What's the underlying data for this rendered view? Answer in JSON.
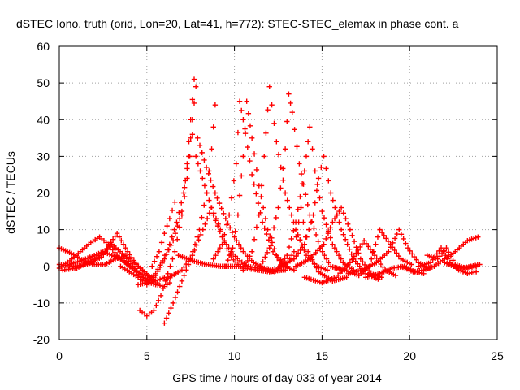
{
  "chart_data": {
    "type": "scatter",
    "title": "dSTEC Iono. truth (orid, Lon=20, Lat=41, h=772): STEC-STEC_elemax in phase cont. a",
    "xlabel": "GPS time / hours of day 033 of year 2014",
    "ylabel": "dSTEC  / TECUs",
    "xlim": [
      0,
      25
    ],
    "ylim": [
      -20,
      60
    ],
    "xticks": [
      0,
      5,
      10,
      15,
      20,
      25
    ],
    "yticks": [
      -20,
      -10,
      0,
      10,
      20,
      30,
      40,
      50,
      60
    ],
    "grid": true,
    "marker": "+",
    "color": "#ff0000",
    "series": [
      {
        "x": [
          0.0,
          0.6,
          1.2,
          1.8,
          2.3,
          2.8,
          3.3,
          3.9,
          4.4,
          4.9,
          5.4
        ],
        "y": [
          -0.5,
          1.5,
          4.0,
          6.5,
          8.0,
          6.0,
          3.0,
          0.5,
          -1.5,
          -2.5,
          -3.0
        ]
      },
      {
        "x": [
          0.0,
          0.7,
          1.4,
          2.0,
          2.6,
          3.2,
          3.8,
          4.4,
          5.0
        ],
        "y": [
          5.0,
          3.5,
          1.5,
          0.5,
          0.5,
          2.0,
          3.0,
          0.5,
          -2.0
        ]
      },
      {
        "x": [
          0.0,
          0.8,
          1.6,
          2.4,
          3.0,
          3.6,
          4.2,
          4.8,
          5.3
        ],
        "y": [
          0.5,
          0.0,
          0.5,
          2.5,
          6.0,
          3.5,
          0.0,
          -3.0,
          -4.0
        ]
      },
      {
        "x": [
          0.2,
          1.0,
          1.8,
          2.6,
          3.3,
          3.9,
          4.5,
          5.1,
          5.6
        ],
        "y": [
          -1.0,
          -0.5,
          1.5,
          4.0,
          9.0,
          4.0,
          0.0,
          -2.5,
          -4.5
        ]
      },
      {
        "x": [
          0.6,
          1.5,
          2.5,
          3.5,
          4.3,
          4.9,
          5.5,
          6.0,
          6.3
        ],
        "y": [
          0.5,
          2.0,
          4.0,
          2.0,
          -1.0,
          -4.0,
          -5.0,
          -5.5,
          -4.5
        ]
      },
      {
        "x": [
          3.5,
          4.0,
          4.5,
          5.0,
          5.5,
          6.0
        ],
        "y": [
          0.0,
          -1.5,
          -3.0,
          -5.0,
          -4.0,
          -3.0
        ]
      },
      {
        "x": [
          4.5,
          5.0,
          5.5,
          6.0,
          6.5,
          7.0,
          7.3,
          7.5,
          7.7
        ],
        "y": [
          -5.0,
          -4.5,
          -2.5,
          2.0,
          7.0,
          15.0,
          28.0,
          40.0,
          51.0
        ]
      },
      {
        "x": [
          5.0,
          5.5,
          5.9,
          6.3,
          6.7,
          7.1,
          7.4,
          7.6,
          7.8
        ],
        "y": [
          -4.0,
          -2.0,
          1.5,
          6.0,
          12.0,
          20.0,
          30.0,
          40.0,
          49.0
        ]
      },
      {
        "x": [
          4.6,
          5.0,
          5.4,
          5.8,
          6.2,
          6.6,
          7.0,
          7.3,
          7.6
        ],
        "y": [
          -12.0,
          -13.5,
          -12.0,
          -8.0,
          -2.0,
          4.0,
          14.0,
          24.0,
          36.0
        ]
      },
      {
        "x": [
          5.3,
          5.7,
          6.0,
          6.3,
          6.6
        ],
        "y": [
          0.0,
          4.0,
          9.0,
          13.0,
          17.5
        ]
      },
      {
        "x": [
          6.0,
          6.5,
          7.0,
          7.5,
          8.0,
          8.4,
          8.7,
          8.9
        ],
        "y": [
          -15.5,
          -10.0,
          -4.0,
          2.0,
          10.0,
          20.0,
          32.0,
          44.0
        ]
      },
      {
        "x": [
          7.9,
          8.4,
          8.9,
          9.5,
          10.0,
          10.5,
          11.1,
          11.7,
          12.3,
          12.9
        ],
        "y": [
          35.0,
          27.0,
          20.0,
          13.0,
          8.0,
          4.0,
          1.0,
          -0.5,
          -1.0,
          -1.0
        ]
      },
      {
        "x": [
          7.8,
          8.3,
          8.8,
          9.3,
          9.8,
          10.3,
          10.8,
          11.3,
          11.8,
          12.3
        ],
        "y": [
          30.0,
          22.0,
          14.0,
          8.0,
          4.0,
          1.5,
          0.0,
          -0.5,
          -1.0,
          -1.5
        ]
      },
      {
        "x": [
          6.8,
          7.6,
          8.4,
          9.2,
          10.0,
          10.6
        ],
        "y": [
          3.0,
          1.5,
          0.5,
          0.0,
          0.0,
          0.0
        ]
      },
      {
        "x": [
          6.1,
          7.0,
          7.6,
          8.2,
          8.7,
          9.2,
          9.7,
          10.2
        ],
        "y": [
          -3.5,
          -1.0,
          3.0,
          10.0,
          16.0,
          10.0,
          3.0,
          0.5
        ]
      },
      {
        "x": [
          8.8,
          9.3,
          9.7,
          10.1,
          10.3,
          10.5,
          11.0,
          11.6,
          12.2,
          12.8,
          13.4
        ],
        "y": [
          2.0,
          6.0,
          14.0,
          28.0,
          45.0,
          40.0,
          25.0,
          12.0,
          4.0,
          0.0,
          -1.0
        ]
      },
      {
        "x": [
          9.5,
          9.9,
          10.2,
          10.5,
          10.7,
          11.0,
          11.4,
          11.9,
          12.4,
          13.0
        ],
        "y": [
          0.0,
          5.0,
          14.0,
          30.0,
          45.0,
          35.0,
          22.0,
          10.0,
          3.0,
          0.0
        ]
      },
      {
        "x": [
          10.5,
          11.0,
          11.4,
          11.7,
          12.0,
          12.4,
          12.9,
          13.5,
          14.1,
          14.7,
          15.3
        ],
        "y": [
          -1.0,
          4.0,
          14.0,
          30.0,
          49.0,
          34.0,
          20.0,
          10.0,
          3.0,
          0.0,
          -1.0
        ]
      },
      {
        "x": [
          11.5,
          12.0,
          12.5,
          12.9,
          13.1,
          13.3,
          13.7,
          14.3,
          14.9,
          15.5,
          16.1
        ],
        "y": [
          0.0,
          5.0,
          16.0,
          32.0,
          47.0,
          42.0,
          28.0,
          14.0,
          5.0,
          0.0,
          -1.0
        ]
      },
      {
        "x": [
          12.5,
          13.0,
          13.5,
          14.0,
          14.3,
          14.6,
          15.0,
          15.6,
          16.2,
          16.8
        ],
        "y": [
          -0.5,
          3.0,
          12.0,
          26.0,
          38.0,
          26.0,
          15.0,
          6.0,
          1.0,
          -1.0
        ]
      },
      {
        "x": [
          10.5,
          11.3,
          12.0,
          12.8,
          13.4,
          13.8,
          14.2,
          14.8,
          15.6,
          16.4
        ],
        "y": [
          -0.5,
          -1.0,
          -1.5,
          -1.0,
          4.0,
          16.0,
          4.0,
          -1.5,
          -4.0,
          -3.0
        ]
      },
      {
        "x": [
          12.6,
          13.4,
          14.0,
          14.5,
          14.8,
          15.1,
          15.5,
          16.1,
          16.8,
          17.5,
          18.2
        ],
        "y": [
          0.0,
          2.0,
          6.0,
          14.0,
          24.0,
          30.0,
          20.0,
          10.0,
          2.0,
          -2.0,
          -3.5
        ]
      },
      {
        "x": [
          13.5,
          14.3,
          15.1,
          15.6,
          16.1,
          16.6,
          17.2,
          17.8,
          18.4
        ],
        "y": [
          0.0,
          2.0,
          6.0,
          12.0,
          16.0,
          10.0,
          2.0,
          -2.0,
          -3.0
        ]
      },
      {
        "x": [
          14.0,
          15.0,
          15.8,
          16.6,
          17.4,
          18.0,
          18.6,
          19.2
        ],
        "y": [
          -3.0,
          -4.5,
          -3.0,
          1.0,
          7.0,
          3.0,
          -1.0,
          -2.5
        ]
      },
      {
        "x": [
          15.5,
          16.3,
          17.1,
          17.7,
          18.3,
          18.9,
          19.5,
          20.1
        ],
        "y": [
          0.0,
          -1.0,
          -2.5,
          0.0,
          10.0,
          6.0,
          2.0,
          0.5
        ]
      },
      {
        "x": [
          16.5,
          17.3,
          18.1,
          18.8,
          19.4,
          19.9,
          20.5,
          21.1
        ],
        "y": [
          -2.0,
          -1.0,
          1.0,
          4.0,
          10.0,
          5.0,
          1.0,
          -0.5
        ]
      },
      {
        "x": [
          17.5,
          18.3,
          19.0,
          19.7,
          20.3,
          20.8
        ],
        "y": [
          -3.0,
          -2.0,
          -0.5,
          0.0,
          -1.5,
          -2.0
        ]
      },
      {
        "x": [
          19.5,
          20.2,
          20.8,
          21.4,
          22.0,
          22.6,
          23.3,
          23.9
        ],
        "y": [
          0.0,
          -1.5,
          -1.0,
          0.0,
          2.0,
          4.0,
          7.0,
          8.0
        ]
      },
      {
        "x": [
          20.5,
          21.2,
          21.8,
          22.3,
          22.8,
          23.3,
          23.8
        ],
        "y": [
          0.0,
          1.0,
          5.0,
          1.0,
          -1.0,
          -2.0,
          -1.5
        ]
      },
      {
        "x": [
          21.0,
          21.6,
          22.1,
          22.6,
          23.2,
          23.8
        ],
        "y": [
          3.0,
          2.0,
          5.0,
          0.5,
          -0.5,
          0.0
        ]
      },
      {
        "x": [
          22.0,
          22.5,
          23.0,
          23.5,
          24.0
        ],
        "y": [
          1.0,
          0.0,
          -0.5,
          0.0,
          0.5
        ]
      }
    ]
  }
}
